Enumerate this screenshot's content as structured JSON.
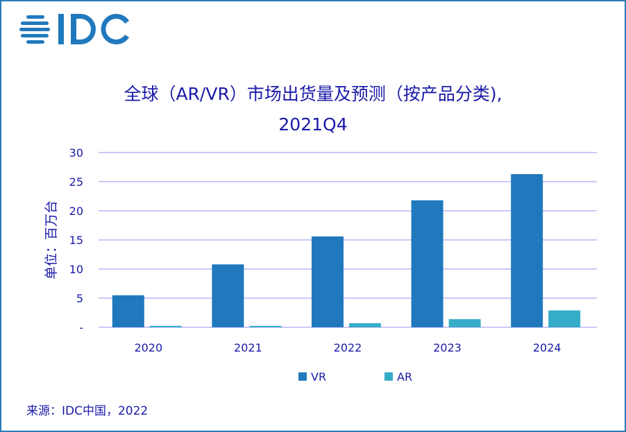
{
  "logo_text": "IDC",
  "colors": {
    "VR": "#2179bd",
    "AR": "#36adc8",
    "grid": "#b8b6f5",
    "text": "#1a1aa8",
    "frame": "#2a7ab8"
  },
  "chart_data": {
    "type": "bar",
    "title_line1": "全球（AR/VR）市场出货量及预测（按产品分类),",
    "title_line2": "2021Q4",
    "ylabel": "单位：百万台",
    "xlabel": "",
    "categories": [
      "2020",
      "2021",
      "2022",
      "2023",
      "2024"
    ],
    "series": [
      {
        "name": "VR",
        "values": [
          5.5,
          10.8,
          15.6,
          21.8,
          26.3
        ]
      },
      {
        "name": "AR",
        "values": [
          0.25,
          0.25,
          0.7,
          1.4,
          2.9
        ]
      }
    ],
    "ylim": [
      0,
      30
    ],
    "yticks": [
      "-",
      "5",
      "10",
      "15",
      "20",
      "25",
      "30"
    ],
    "grid": true,
    "legend": "bottom"
  },
  "source": "来源：IDC中国，2022"
}
